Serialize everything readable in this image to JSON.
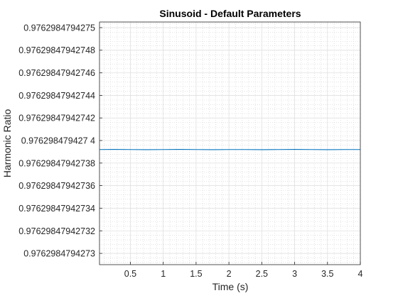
{
  "chart_data": {
    "type": "line",
    "title": "Sinusoid - Default Parameters",
    "xlabel": "Time (s)",
    "ylabel": "Harmonic Ratio",
    "xlim": [
      0.03,
      4.0
    ],
    "ylim": [
      0.97629847942729,
      0.976298479427505
    ],
    "x_ticks": [
      {
        "value": 0.5,
        "label": "0.5"
      },
      {
        "value": 1,
        "label": "1"
      },
      {
        "value": 1.5,
        "label": "1.5"
      },
      {
        "value": 2,
        "label": "2"
      },
      {
        "value": 2.5,
        "label": "2.5"
      },
      {
        "value": 3,
        "label": "3"
      },
      {
        "value": 3.5,
        "label": "3.5"
      },
      {
        "value": 4,
        "label": "4"
      }
    ],
    "y_ticks": [
      {
        "value": 0.9762984794273,
        "label": "0.9762984794273"
      },
      {
        "value": 0.97629847942732,
        "label": "0.97629847942732"
      },
      {
        "value": 0.97629847942734,
        "label": "0.97629847942734"
      },
      {
        "value": 0.97629847942736,
        "label": "0.97629847942736"
      },
      {
        "value": 0.97629847942738,
        "label": "0.97629847942738"
      },
      {
        "value": 0.9762984794274,
        "label": "0.976298479427 4"
      },
      {
        "value": 0.97629847942742,
        "label": "0.97629847942742"
      },
      {
        "value": 0.97629847942744,
        "label": "0.97629847942744"
      },
      {
        "value": 0.97629847942746,
        "label": "0.97629847942746"
      },
      {
        "value": 0.97629847942748,
        "label": "0.97629847942748"
      },
      {
        "value": 0.9762984794275,
        "label": "0.9762984794275"
      }
    ],
    "grid": true,
    "minor_grid": true,
    "series": [
      {
        "color": "#0072BD",
        "x": [
          0.03,
          0.25,
          0.5,
          0.75,
          1.0,
          1.25,
          1.5,
          1.75,
          2.0,
          2.25,
          2.5,
          2.75,
          3.0,
          3.25,
          3.5,
          3.75,
          4.0
        ],
        "y": [
          0.976298479427392,
          0.9762984794273921,
          0.976298479427392,
          0.9762984794273919,
          0.976298479427392,
          0.9762984794273921,
          0.976298479427392,
          0.9762984794273919,
          0.976298479427392,
          0.976298479427392,
          0.9762984794273919,
          0.976298479427392,
          0.9762984794273921,
          0.976298479427392,
          0.9762984794273919,
          0.976298479427392,
          0.976298479427392
        ]
      }
    ]
  }
}
